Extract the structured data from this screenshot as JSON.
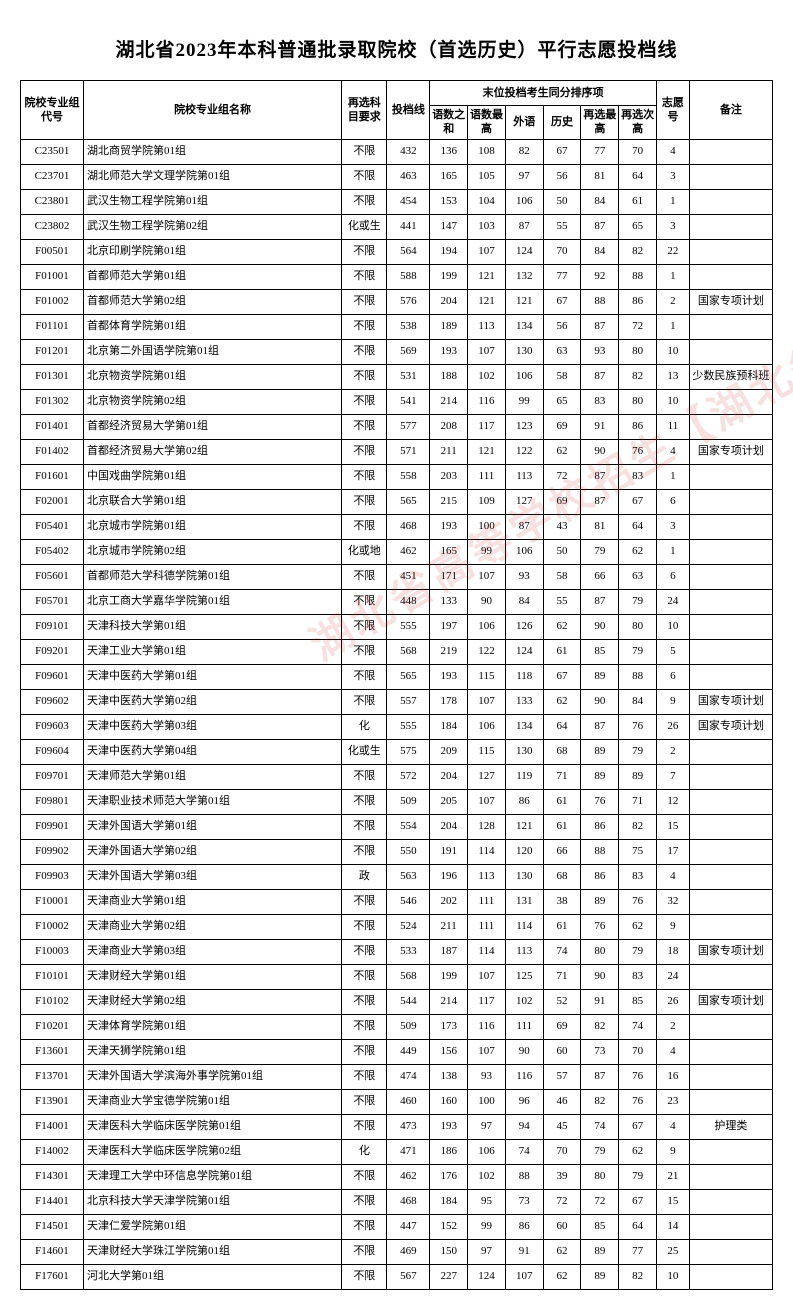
{
  "title": "湖北省2023年本科普通批录取院校（首选历史）平行志愿投档线",
  "header": {
    "code": "院校专业组代号",
    "name": "院校专业组名称",
    "req": "再选科目要求",
    "score": "投档线",
    "last_group": "末位投档考生同分排序项",
    "sub1": "语数之和",
    "sub2": "语数最高",
    "sub3": "外语",
    "sub4": "历史",
    "sub5": "再选最高",
    "sub6": "再选次高",
    "wish": "志愿号",
    "remark": "备注"
  },
  "watermark": "湖北省高等学校招生【湖北省考试院】",
  "rows": [
    {
      "code": "C23501",
      "name": "湖北商贸学院第01组",
      "req": "不限",
      "score": "432",
      "s1": "136",
      "s2": "108",
      "s3": "82",
      "s4": "67",
      "s5": "77",
      "s6": "70",
      "wish": "4",
      "remark": ""
    },
    {
      "code": "C23701",
      "name": "湖北师范大学文理学院第01组",
      "req": "不限",
      "score": "463",
      "s1": "165",
      "s2": "105",
      "s3": "97",
      "s4": "56",
      "s5": "81",
      "s6": "64",
      "wish": "3",
      "remark": ""
    },
    {
      "code": "C23801",
      "name": "武汉生物工程学院第01组",
      "req": "不限",
      "score": "454",
      "s1": "153",
      "s2": "104",
      "s3": "106",
      "s4": "50",
      "s5": "84",
      "s6": "61",
      "wish": "1",
      "remark": ""
    },
    {
      "code": "C23802",
      "name": "武汉生物工程学院第02组",
      "req": "化或生",
      "score": "441",
      "s1": "147",
      "s2": "103",
      "s3": "87",
      "s4": "55",
      "s5": "87",
      "s6": "65",
      "wish": "3",
      "remark": ""
    },
    {
      "code": "F00501",
      "name": "北京印刷学院第01组",
      "req": "不限",
      "score": "564",
      "s1": "194",
      "s2": "107",
      "s3": "124",
      "s4": "70",
      "s5": "84",
      "s6": "82",
      "wish": "22",
      "remark": ""
    },
    {
      "code": "F01001",
      "name": "首都师范大学第01组",
      "req": "不限",
      "score": "588",
      "s1": "199",
      "s2": "121",
      "s3": "132",
      "s4": "77",
      "s5": "92",
      "s6": "88",
      "wish": "1",
      "remark": ""
    },
    {
      "code": "F01002",
      "name": "首都师范大学第02组",
      "req": "不限",
      "score": "576",
      "s1": "204",
      "s2": "121",
      "s3": "121",
      "s4": "67",
      "s5": "88",
      "s6": "86",
      "wish": "2",
      "remark": "国家专项计划"
    },
    {
      "code": "F01101",
      "name": "首都体育学院第01组",
      "req": "不限",
      "score": "538",
      "s1": "189",
      "s2": "113",
      "s3": "134",
      "s4": "56",
      "s5": "87",
      "s6": "72",
      "wish": "1",
      "remark": ""
    },
    {
      "code": "F01201",
      "name": "北京第二外国语学院第01组",
      "req": "不限",
      "score": "569",
      "s1": "193",
      "s2": "107",
      "s3": "130",
      "s4": "63",
      "s5": "93",
      "s6": "80",
      "wish": "10",
      "remark": ""
    },
    {
      "code": "F01301",
      "name": "北京物资学院第01组",
      "req": "不限",
      "score": "531",
      "s1": "188",
      "s2": "102",
      "s3": "106",
      "s4": "58",
      "s5": "87",
      "s6": "82",
      "wish": "13",
      "remark": "少数民族预科班"
    },
    {
      "code": "F01302",
      "name": "北京物资学院第02组",
      "req": "不限",
      "score": "541",
      "s1": "214",
      "s2": "116",
      "s3": "99",
      "s4": "65",
      "s5": "83",
      "s6": "80",
      "wish": "10",
      "remark": ""
    },
    {
      "code": "F01401",
      "name": "首都经济贸易大学第01组",
      "req": "不限",
      "score": "577",
      "s1": "208",
      "s2": "117",
      "s3": "123",
      "s4": "69",
      "s5": "91",
      "s6": "86",
      "wish": "11",
      "remark": ""
    },
    {
      "code": "F01402",
      "name": "首都经济贸易大学第02组",
      "req": "不限",
      "score": "571",
      "s1": "211",
      "s2": "121",
      "s3": "122",
      "s4": "62",
      "s5": "90",
      "s6": "76",
      "wish": "4",
      "remark": "国家专项计划"
    },
    {
      "code": "F01601",
      "name": "中国戏曲学院第01组",
      "req": "不限",
      "score": "558",
      "s1": "203",
      "s2": "111",
      "s3": "113",
      "s4": "72",
      "s5": "87",
      "s6": "83",
      "wish": "1",
      "remark": ""
    },
    {
      "code": "F02001",
      "name": "北京联合大学第01组",
      "req": "不限",
      "score": "565",
      "s1": "215",
      "s2": "109",
      "s3": "127",
      "s4": "69",
      "s5": "87",
      "s6": "67",
      "wish": "6",
      "remark": ""
    },
    {
      "code": "F05401",
      "name": "北京城市学院第01组",
      "req": "不限",
      "score": "468",
      "s1": "193",
      "s2": "100",
      "s3": "87",
      "s4": "43",
      "s5": "81",
      "s6": "64",
      "wish": "3",
      "remark": ""
    },
    {
      "code": "F05402",
      "name": "北京城市学院第02组",
      "req": "化或地",
      "score": "462",
      "s1": "165",
      "s2": "99",
      "s3": "106",
      "s4": "50",
      "s5": "79",
      "s6": "62",
      "wish": "1",
      "remark": ""
    },
    {
      "code": "F05601",
      "name": "首都师范大学科德学院第01组",
      "req": "不限",
      "score": "451",
      "s1": "171",
      "s2": "107",
      "s3": "93",
      "s4": "58",
      "s5": "66",
      "s6": "63",
      "wish": "6",
      "remark": ""
    },
    {
      "code": "F05701",
      "name": "北京工商大学嘉华学院第01组",
      "req": "不限",
      "score": "448",
      "s1": "133",
      "s2": "90",
      "s3": "84",
      "s4": "55",
      "s5": "87",
      "s6": "79",
      "wish": "24",
      "remark": ""
    },
    {
      "code": "F09101",
      "name": "天津科技大学第01组",
      "req": "不限",
      "score": "555",
      "s1": "197",
      "s2": "106",
      "s3": "126",
      "s4": "62",
      "s5": "90",
      "s6": "80",
      "wish": "10",
      "remark": ""
    },
    {
      "code": "F09201",
      "name": "天津工业大学第01组",
      "req": "不限",
      "score": "568",
      "s1": "219",
      "s2": "122",
      "s3": "124",
      "s4": "61",
      "s5": "85",
      "s6": "79",
      "wish": "5",
      "remark": ""
    },
    {
      "code": "F09601",
      "name": "天津中医药大学第01组",
      "req": "不限",
      "score": "565",
      "s1": "193",
      "s2": "115",
      "s3": "118",
      "s4": "67",
      "s5": "89",
      "s6": "88",
      "wish": "6",
      "remark": ""
    },
    {
      "code": "F09602",
      "name": "天津中医药大学第02组",
      "req": "不限",
      "score": "557",
      "s1": "178",
      "s2": "107",
      "s3": "133",
      "s4": "62",
      "s5": "90",
      "s6": "84",
      "wish": "9",
      "remark": "国家专项计划"
    },
    {
      "code": "F09603",
      "name": "天津中医药大学第03组",
      "req": "化",
      "score": "555",
      "s1": "184",
      "s2": "106",
      "s3": "134",
      "s4": "64",
      "s5": "87",
      "s6": "76",
      "wish": "26",
      "remark": "国家专项计划"
    },
    {
      "code": "F09604",
      "name": "天津中医药大学第04组",
      "req": "化或生",
      "score": "575",
      "s1": "209",
      "s2": "115",
      "s3": "130",
      "s4": "68",
      "s5": "89",
      "s6": "79",
      "wish": "2",
      "remark": ""
    },
    {
      "code": "F09701",
      "name": "天津师范大学第01组",
      "req": "不限",
      "score": "572",
      "s1": "204",
      "s2": "127",
      "s3": "119",
      "s4": "71",
      "s5": "89",
      "s6": "89",
      "wish": "7",
      "remark": ""
    },
    {
      "code": "F09801",
      "name": "天津职业技术师范大学第01组",
      "req": "不限",
      "score": "509",
      "s1": "205",
      "s2": "107",
      "s3": "86",
      "s4": "61",
      "s5": "76",
      "s6": "71",
      "wish": "12",
      "remark": ""
    },
    {
      "code": "F09901",
      "name": "天津外国语大学第01组",
      "req": "不限",
      "score": "554",
      "s1": "204",
      "s2": "128",
      "s3": "121",
      "s4": "61",
      "s5": "86",
      "s6": "82",
      "wish": "15",
      "remark": ""
    },
    {
      "code": "F09902",
      "name": "天津外国语大学第02组",
      "req": "不限",
      "score": "550",
      "s1": "191",
      "s2": "114",
      "s3": "120",
      "s4": "66",
      "s5": "88",
      "s6": "75",
      "wish": "17",
      "remark": ""
    },
    {
      "code": "F09903",
      "name": "天津外国语大学第03组",
      "req": "政",
      "score": "563",
      "s1": "196",
      "s2": "113",
      "s3": "130",
      "s4": "68",
      "s5": "86",
      "s6": "83",
      "wish": "4",
      "remark": ""
    },
    {
      "code": "F10001",
      "name": "天津商业大学第01组",
      "req": "不限",
      "score": "546",
      "s1": "202",
      "s2": "111",
      "s3": "131",
      "s4": "38",
      "s5": "89",
      "s6": "76",
      "wish": "32",
      "remark": ""
    },
    {
      "code": "F10002",
      "name": "天津商业大学第02组",
      "req": "不限",
      "score": "524",
      "s1": "211",
      "s2": "111",
      "s3": "114",
      "s4": "61",
      "s5": "76",
      "s6": "62",
      "wish": "9",
      "remark": ""
    },
    {
      "code": "F10003",
      "name": "天津商业大学第03组",
      "req": "不限",
      "score": "533",
      "s1": "187",
      "s2": "114",
      "s3": "113",
      "s4": "74",
      "s5": "80",
      "s6": "79",
      "wish": "18",
      "remark": "国家专项计划"
    },
    {
      "code": "F10101",
      "name": "天津财经大学第01组",
      "req": "不限",
      "score": "568",
      "s1": "199",
      "s2": "107",
      "s3": "125",
      "s4": "71",
      "s5": "90",
      "s6": "83",
      "wish": "24",
      "remark": ""
    },
    {
      "code": "F10102",
      "name": "天津财经大学第02组",
      "req": "不限",
      "score": "544",
      "s1": "214",
      "s2": "117",
      "s3": "102",
      "s4": "52",
      "s5": "91",
      "s6": "85",
      "wish": "26",
      "remark": "国家专项计划"
    },
    {
      "code": "F10201",
      "name": "天津体育学院第01组",
      "req": "不限",
      "score": "509",
      "s1": "173",
      "s2": "116",
      "s3": "111",
      "s4": "69",
      "s5": "82",
      "s6": "74",
      "wish": "2",
      "remark": ""
    },
    {
      "code": "F13601",
      "name": "天津天狮学院第01组",
      "req": "不限",
      "score": "449",
      "s1": "156",
      "s2": "107",
      "s3": "90",
      "s4": "60",
      "s5": "73",
      "s6": "70",
      "wish": "4",
      "remark": ""
    },
    {
      "code": "F13701",
      "name": "天津外国语大学滨海外事学院第01组",
      "req": "不限",
      "score": "474",
      "s1": "138",
      "s2": "93",
      "s3": "116",
      "s4": "57",
      "s5": "87",
      "s6": "76",
      "wish": "16",
      "remark": ""
    },
    {
      "code": "F13901",
      "name": "天津商业大学宝德学院第01组",
      "req": "不限",
      "score": "460",
      "s1": "160",
      "s2": "100",
      "s3": "96",
      "s4": "46",
      "s5": "82",
      "s6": "76",
      "wish": "23",
      "remark": ""
    },
    {
      "code": "F14001",
      "name": "天津医科大学临床医学院第01组",
      "req": "不限",
      "score": "473",
      "s1": "193",
      "s2": "97",
      "s3": "94",
      "s4": "45",
      "s5": "74",
      "s6": "67",
      "wish": "4",
      "remark": "护理类"
    },
    {
      "code": "F14002",
      "name": "天津医科大学临床医学院第02组",
      "req": "化",
      "score": "471",
      "s1": "186",
      "s2": "106",
      "s3": "74",
      "s4": "70",
      "s5": "79",
      "s6": "62",
      "wish": "9",
      "remark": ""
    },
    {
      "code": "F14301",
      "name": "天津理工大学中环信息学院第01组",
      "req": "不限",
      "score": "462",
      "s1": "176",
      "s2": "102",
      "s3": "88",
      "s4": "39",
      "s5": "80",
      "s6": "79",
      "wish": "21",
      "remark": ""
    },
    {
      "code": "F14401",
      "name": "北京科技大学天津学院第01组",
      "req": "不限",
      "score": "468",
      "s1": "184",
      "s2": "95",
      "s3": "73",
      "s4": "72",
      "s5": "72",
      "s6": "67",
      "wish": "15",
      "remark": ""
    },
    {
      "code": "F14501",
      "name": "天津仁爱学院第01组",
      "req": "不限",
      "score": "447",
      "s1": "152",
      "s2": "99",
      "s3": "86",
      "s4": "60",
      "s5": "85",
      "s6": "64",
      "wish": "14",
      "remark": ""
    },
    {
      "code": "F14601",
      "name": "天津财经大学珠江学院第01组",
      "req": "不限",
      "score": "469",
      "s1": "150",
      "s2": "97",
      "s3": "91",
      "s4": "62",
      "s5": "89",
      "s6": "77",
      "wish": "25",
      "remark": ""
    },
    {
      "code": "F17601",
      "name": "河北大学第01组",
      "req": "不限",
      "score": "567",
      "s1": "227",
      "s2": "124",
      "s3": "107",
      "s4": "62",
      "s5": "89",
      "s6": "82",
      "wish": "10",
      "remark": ""
    }
  ]
}
